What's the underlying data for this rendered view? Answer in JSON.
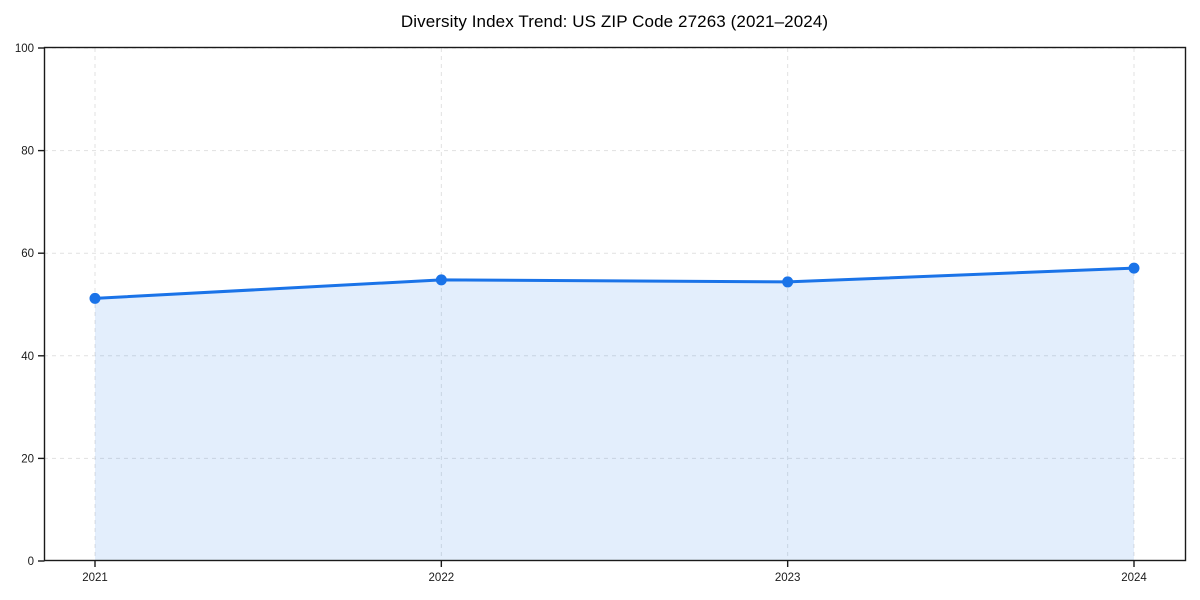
{
  "chart_data": {
    "type": "line",
    "title": "Diversity Index Trend: US ZIP Code 27263 (2021–2024)",
    "x": [
      "2021",
      "2022",
      "2023",
      "2024"
    ],
    "values": [
      51.2,
      54.8,
      54.4,
      57.1
    ],
    "xlabel": "",
    "ylabel": "",
    "ylim": [
      0,
      100
    ],
    "yticks": [
      0,
      20,
      40,
      60,
      80,
      100
    ],
    "grid": true,
    "grid_style": "dashed",
    "legend": "none",
    "area_fill": true,
    "marker": "circle",
    "colors": {
      "line": "#1a73e8",
      "area": "rgba(26,115,232,0.12)",
      "grid": "#e1e1e1",
      "axis": "#1a1a1a",
      "tick_text": "#1a1a1a",
      "background": "#ffffff"
    }
  }
}
